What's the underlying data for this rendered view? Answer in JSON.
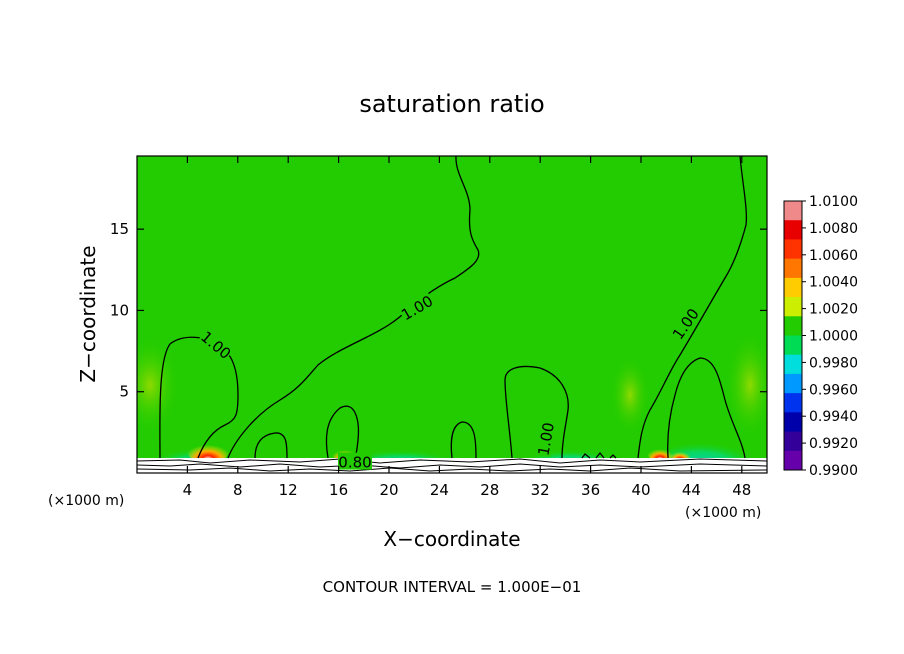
{
  "chart_data": {
    "type": "heatmap",
    "title": "saturation ratio",
    "xlabel": "X−coordinate",
    "ylabel": "Z−coordinate",
    "x_unit": "(×1000 m)",
    "y_unit": "(×1000 m)",
    "xlim": [
      0,
      50
    ],
    "ylim": [
      0,
      19.5
    ],
    "x_ticks": [
      4,
      8,
      12,
      16,
      20,
      24,
      28,
      32,
      36,
      40,
      44,
      48
    ],
    "y_ticks": [
      5,
      10,
      15
    ],
    "colorbar": {
      "levels": [
        "1.0100",
        "1.0080",
        "1.0060",
        "1.0040",
        "1.0020",
        "1.0000",
        "0.9980",
        "0.9960",
        "0.9940",
        "0.9920",
        "0.9900"
      ],
      "colors": [
        "#f08a8a",
        "#e80000",
        "#ff3300",
        "#ff7700",
        "#ffcc00",
        "#ccee00",
        "#22cc00",
        "#00dd55",
        "#00dddd",
        "#0099ff",
        "#0033ee",
        "#0000aa",
        "#330099",
        "#6600aa"
      ]
    },
    "background_value": 1.0,
    "contour_labels": [
      {
        "text": "1.00",
        "x": 6.3,
        "y": 7.9
      },
      {
        "text": "1.00",
        "x": 22.2,
        "y": 10.2
      },
      {
        "text": "1.00",
        "x": 43.5,
        "y": 9.2
      },
      {
        "text": "1.00",
        "x": 32.4,
        "y": 2.1
      },
      {
        "text": "0.80",
        "x": 17.3,
        "y": 0.7
      }
    ],
    "contour_interval_text": "CONTOUR INTERVAL = 1.000E−01"
  }
}
